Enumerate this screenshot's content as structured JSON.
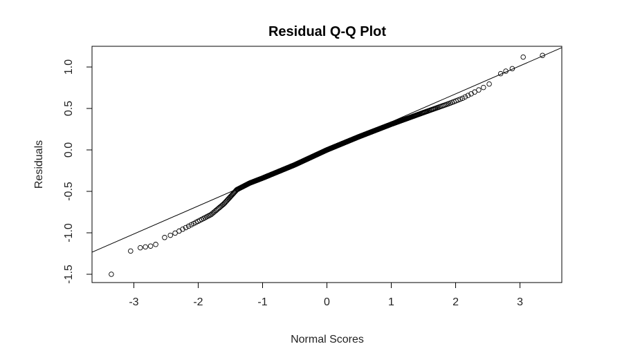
{
  "chart_data": {
    "type": "scatter",
    "title": "Residual Q-Q Plot",
    "xlabel": "Normal Scores",
    "ylabel": "Residuals",
    "xlim": [
      -3.65,
      3.65
    ],
    "ylim": [
      -1.6,
      1.25
    ],
    "xticks": [
      -3,
      -2,
      -1,
      0,
      1,
      2,
      3
    ],
    "xtick_labels": [
      "-3",
      "-2",
      "-1",
      "0",
      "1",
      "2",
      "3"
    ],
    "yticks": [
      -1.5,
      -1.0,
      -0.5,
      0.0,
      0.5,
      1.0
    ],
    "ytick_labels": [
      "-1.5",
      "-1.0",
      "-0.5",
      "0.0",
      "0.5",
      "1.0"
    ],
    "grid": false,
    "point_style": "open-circle",
    "reference_line": {
      "intercept": 0.0,
      "slope": 0.338
    },
    "n_points": 600,
    "extreme_points": {
      "x": [
        -3.35,
        -3.05,
        -2.9,
        -2.82,
        -2.74,
        -2.66,
        2.7,
        2.78,
        2.88,
        3.05,
        3.35
      ],
      "y": [
        -1.5,
        -1.22,
        -1.18,
        -1.17,
        -1.16,
        -1.14,
        0.92,
        0.95,
        0.98,
        1.12,
        1.14
      ]
    },
    "quantile_curve": {
      "x": [
        -2.6,
        -2.4,
        -2.2,
        -2.0,
        -1.8,
        -1.6,
        -1.4,
        -1.2,
        -1.0,
        -0.5,
        0.0,
        0.5,
        1.0,
        1.5,
        1.9,
        2.1,
        2.3,
        2.5,
        2.62
      ],
      "y": [
        -1.08,
        -1.02,
        -0.94,
        -0.86,
        -0.78,
        -0.65,
        -0.48,
        -0.4,
        -0.34,
        -0.18,
        0.0,
        0.16,
        0.31,
        0.45,
        0.56,
        0.62,
        0.7,
        0.78,
        0.86
      ]
    }
  }
}
